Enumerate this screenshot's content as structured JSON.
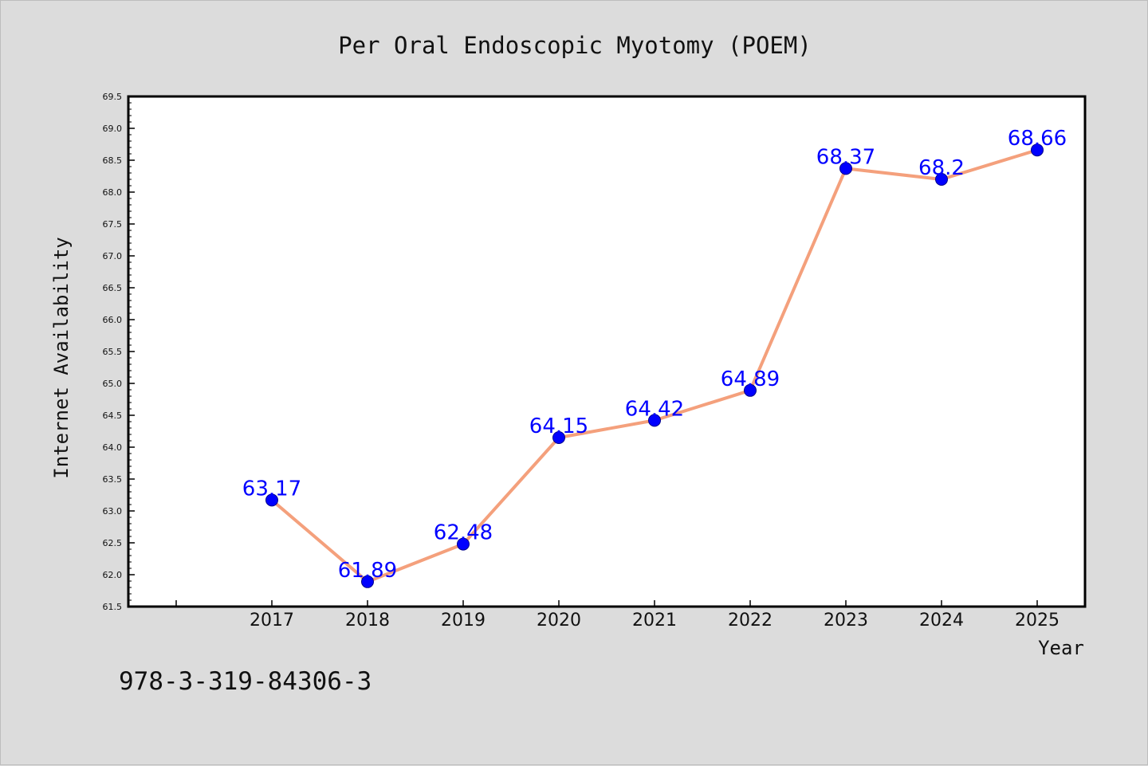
{
  "chart_data": {
    "type": "line",
    "title": "Per Oral Endoscopic Myotomy (POEM)",
    "xlabel": "Year",
    "ylabel": "Internet Availability",
    "categories": [
      "2017",
      "2018",
      "2019",
      "2020",
      "2021",
      "2022",
      "2023",
      "2024",
      "2025"
    ],
    "series": [
      {
        "values": [
          63.17,
          61.89,
          62.48,
          64.15,
          64.42,
          64.89,
          68.37,
          68.2,
          68.66
        ],
        "labels": [
          "63.17",
          "61.89",
          "62.48",
          "64.15",
          "64.42",
          "64.89",
          "68.37",
          "68.2",
          "68.66"
        ]
      }
    ],
    "ylim": [
      61.5,
      69.5
    ],
    "yticks": [
      "61.5",
      "62.0",
      "62.5",
      "63.0",
      "63.5",
      "64.0",
      "64.5",
      "65.0",
      "65.5",
      "66.0",
      "66.5",
      "67.0",
      "67.5",
      "68.0",
      "68.5",
      "69.0",
      "69.5"
    ],
    "grid": false,
    "colors": {
      "line": "#f4a07c",
      "marker": "#0000ff",
      "data_label": "#0000ff"
    }
  },
  "footer": {
    "text": "978-3-319-84306-3"
  }
}
